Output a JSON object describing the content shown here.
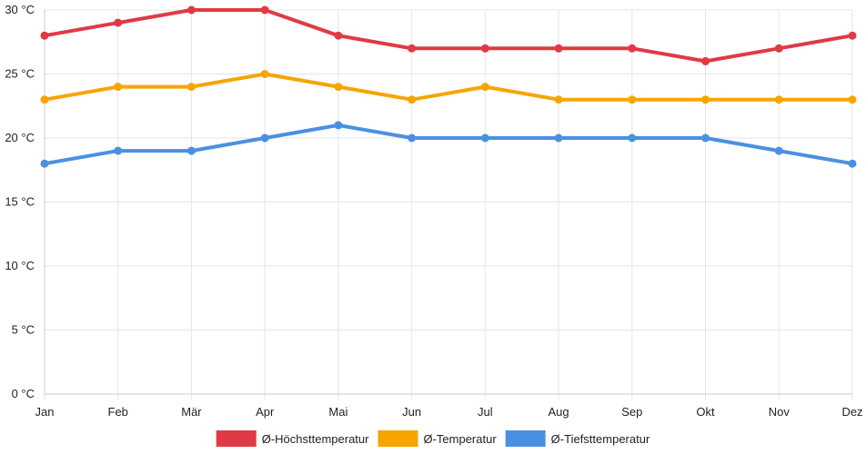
{
  "chart_data": {
    "type": "line",
    "title": "",
    "xlabel": "",
    "ylabel": "",
    "categories": [
      "Jan",
      "Feb",
      "Mär",
      "Apr",
      "Mai",
      "Jun",
      "Jul",
      "Aug",
      "Sep",
      "Okt",
      "Nov",
      "Dez"
    ],
    "ylim": [
      0,
      30
    ],
    "y_ticks": [
      0,
      5,
      10,
      15,
      20,
      25,
      30
    ],
    "y_tick_labels": [
      "0 °C",
      "5 °C",
      "10 °C",
      "15 °C",
      "20 °C",
      "25 °C",
      "30 °C"
    ],
    "grid": true,
    "legend_position": "bottom",
    "series": [
      {
        "name": "Ø-Höchsttemperatur",
        "color": "#e03a45",
        "values": [
          28,
          29,
          30,
          30,
          28,
          27,
          27,
          27,
          27,
          26,
          27,
          28
        ]
      },
      {
        "name": "Ø-Temperatur",
        "color": "#f6a500",
        "values": [
          23,
          24,
          24,
          25,
          24,
          23,
          24,
          23,
          23,
          23,
          23,
          23
        ]
      },
      {
        "name": "Ø-Tiefsttemperatur",
        "color": "#4a90e2",
        "values": [
          18,
          19,
          19,
          20,
          21,
          20,
          20,
          20,
          20,
          20,
          19,
          18
        ]
      }
    ]
  },
  "colors": {
    "grid": "#e6e6e6",
    "axis": "#cccccc",
    "text": "#222222"
  }
}
